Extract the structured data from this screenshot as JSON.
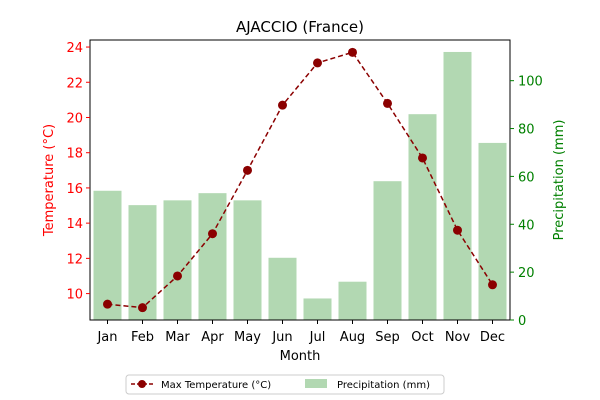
{
  "chart_data": {
    "type": "bar",
    "title": "AJACCIO (France)",
    "xlabel": "Month",
    "ylabel_left": "Temperature (°C)",
    "ylabel_right": "Precipitation (mm)",
    "categories": [
      "Jan",
      "Feb",
      "Mar",
      "Apr",
      "May",
      "Jun",
      "Jul",
      "Aug",
      "Sep",
      "Oct",
      "Nov",
      "Dec"
    ],
    "ylim_left": [
      8.5,
      24.4
    ],
    "ylim_right": [
      0,
      117
    ],
    "yticks_left": [
      10,
      12,
      14,
      16,
      18,
      20,
      22,
      24
    ],
    "yticks_right": [
      0,
      20,
      40,
      60,
      80,
      100
    ],
    "grid": false,
    "legend_position": "bottom-center",
    "series": [
      {
        "name": "Max Temperature (°C)",
        "type": "line",
        "axis": "left",
        "values": [
          9.4,
          9.2,
          11.0,
          13.4,
          17.0,
          20.7,
          23.1,
          23.7,
          20.8,
          17.7,
          13.6,
          10.5
        ],
        "color": "#8b0000"
      },
      {
        "name": "Precipitation (mm)",
        "type": "bar",
        "axis": "right",
        "values": [
          54,
          48,
          50,
          53,
          50,
          26,
          9,
          16,
          58,
          86,
          112,
          74
        ],
        "color": "#b2d8b2"
      }
    ],
    "colors": {
      "left_axis": "#ff0000",
      "right_axis": "#008000"
    }
  }
}
